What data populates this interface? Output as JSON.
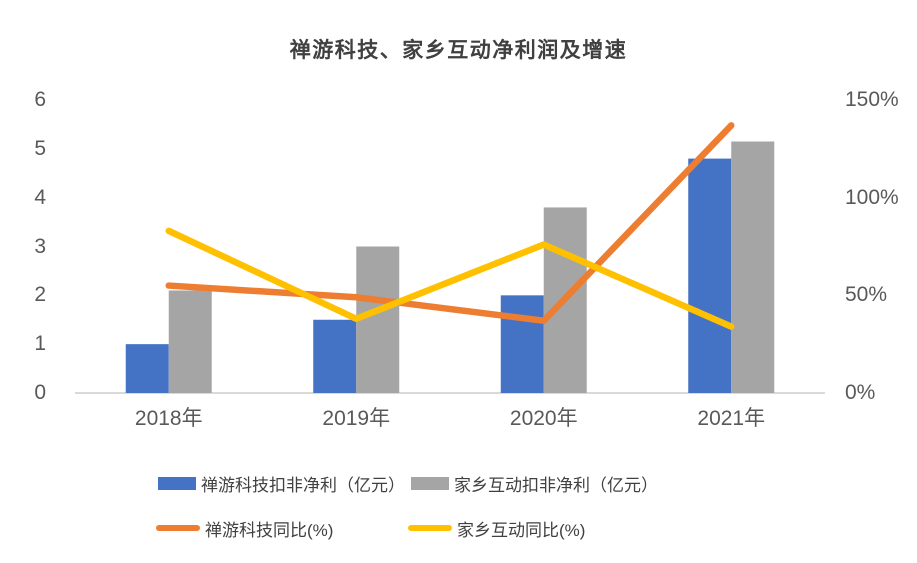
{
  "title": "禅游科技、家乡互动净利润及增速",
  "chart_data": {
    "type": "bar+line",
    "categories": [
      "2018年",
      "2019年",
      "2020年",
      "2021年"
    ],
    "series": [
      {
        "name": "禅游科技扣非净利（亿元）",
        "type": "bar",
        "axis": "left",
        "color": "#4472C4",
        "values": [
          1.0,
          1.5,
          2.0,
          4.8
        ]
      },
      {
        "name": "家乡互动扣非净利（亿元）",
        "type": "bar",
        "axis": "left",
        "color": "#A5A5A5",
        "values": [
          2.1,
          3.0,
          3.8,
          5.15
        ]
      },
      {
        "name": "禅游科技同比(%)",
        "type": "line",
        "axis": "right",
        "color": "#ED7D31",
        "values": [
          55,
          49,
          37,
          137
        ]
      },
      {
        "name": "家乡互动同比(%)",
        "type": "line",
        "axis": "right",
        "color": "#FFC000",
        "values": [
          83,
          38,
          76,
          34
        ]
      }
    ],
    "left_axis": {
      "min": 0,
      "max": 6,
      "ticks": [
        "0",
        "1",
        "2",
        "3",
        "4",
        "5",
        "6"
      ]
    },
    "right_axis": {
      "min": 0,
      "max": 150,
      "ticks": [
        "0%",
        "50%",
        "100%",
        "150%"
      ]
    },
    "grid": false,
    "legend_position": "bottom"
  },
  "colors": {
    "axis_line": "#D9D9D9",
    "axis_text": "#595959",
    "title_text": "#404040",
    "legend_text": "#404040",
    "background": "#FFFFFF"
  }
}
